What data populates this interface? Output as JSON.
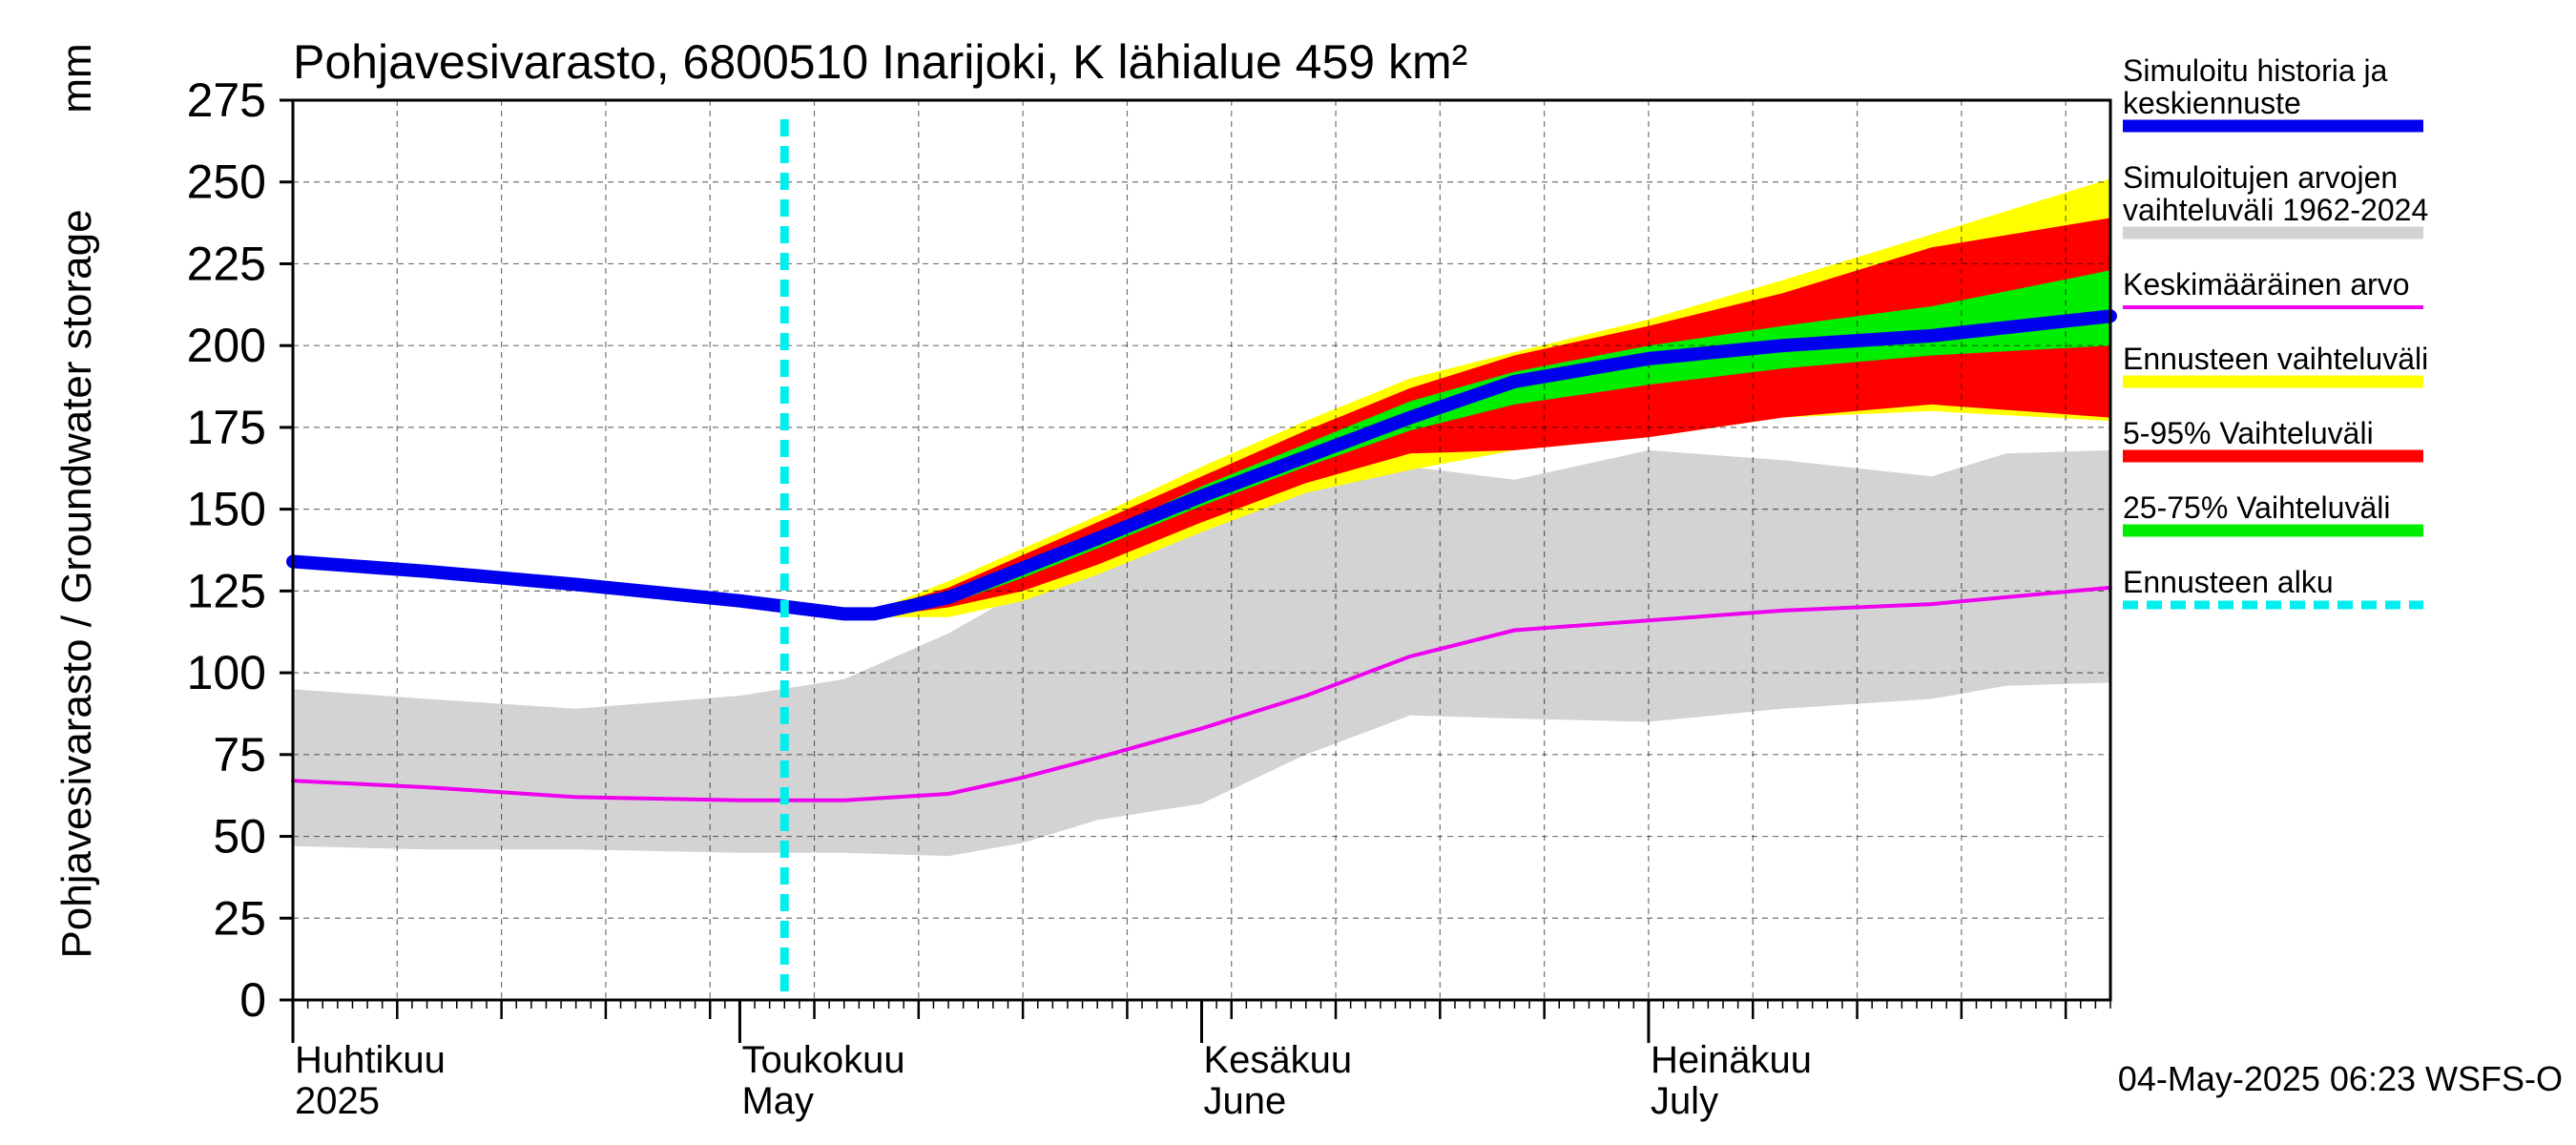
{
  "chart_data": {
    "type": "area",
    "title": "Pohjavesivarasto, 6800510 Inarijoki, K lähialue 459 km²",
    "ylabel": "Pohjavesivarasto / Groundwater storage",
    "yunit": "mm",
    "ylim": [
      0,
      275
    ],
    "yticks": [
      0,
      25,
      50,
      75,
      100,
      125,
      150,
      175,
      200,
      225,
      250,
      275
    ],
    "xlim": [
      "2025-04-01",
      "2025-08-01"
    ],
    "grid": true,
    "legend_position": "right",
    "month_labels": [
      {
        "date": "2025-04-01",
        "fi": "Huhtikuu",
        "en": "2025"
      },
      {
        "date": "2025-05-01",
        "fi": "Toukokuu",
        "en": "May"
      },
      {
        "date": "2025-06-01",
        "fi": "Kesäkuu",
        "en": "June"
      },
      {
        "date": "2025-07-01",
        "fi": "Heinäkuu",
        "en": "July"
      }
    ],
    "forecast_start": "2025-05-04",
    "footer": "04-May-2025 06:23 WSFS-O",
    "colors": {
      "history_range": "#d3d3d3",
      "forecast_range": "#ffff00",
      "p5_95": "#ff0000",
      "p25_75": "#00ee00",
      "mean": "#ee00ee",
      "simulated": "#0000ee",
      "forecast_start": "#00eeee"
    },
    "series": [
      {
        "name": "Simuloitujen arvojen vaihteluväli 1962-2024",
        "key": "history_range",
        "x": [
          "2025-04-01",
          "2025-04-10",
          "2025-04-20",
          "2025-05-01",
          "2025-05-08",
          "2025-05-15",
          "2025-05-20",
          "2025-05-25",
          "2025-06-01",
          "2025-06-08",
          "2025-06-15",
          "2025-06-22",
          "2025-07-01",
          "2025-07-10",
          "2025-07-20",
          "2025-07-25",
          "2025-08-01"
        ],
        "low": [
          47,
          46,
          46,
          45,
          45,
          44,
          48,
          55,
          60,
          75,
          87,
          86,
          85,
          89,
          92,
          96,
          97
        ],
        "high": [
          95,
          92,
          89,
          93,
          98,
          112,
          125,
          140,
          152,
          160,
          163,
          159,
          168,
          165,
          160,
          167,
          168
        ]
      },
      {
        "name": "Ennusteen vaihteluväli",
        "key": "forecast_range",
        "x": [
          "2025-05-10",
          "2025-05-15",
          "2025-05-20",
          "2025-05-25",
          "2025-06-01",
          "2025-06-08",
          "2025-06-15",
          "2025-06-22",
          "2025-07-01",
          "2025-07-10",
          "2025-07-20",
          "2025-08-01"
        ],
        "low": [
          117,
          117,
          122,
          130,
          143,
          155,
          162,
          168,
          172,
          178,
          180,
          177
        ],
        "high": [
          119,
          128,
          138,
          148,
          163,
          177,
          190,
          198,
          208,
          220,
          234,
          251
        ]
      },
      {
        "name": "5-95% Vaihteluväli",
        "key": "p5_95",
        "x": [
          "2025-05-10",
          "2025-05-15",
          "2025-05-20",
          "2025-05-25",
          "2025-06-01",
          "2025-06-08",
          "2025-06-15",
          "2025-06-22",
          "2025-07-01",
          "2025-07-10",
          "2025-07-20",
          "2025-08-01"
        ],
        "low": [
          117,
          120,
          125,
          133,
          146,
          158,
          167,
          168,
          172,
          178,
          182,
          178
        ],
        "high": [
          119,
          126,
          136,
          146,
          160,
          174,
          187,
          197,
          206,
          216,
          230,
          239
        ]
      },
      {
        "name": "25-75% Vaihteluväli",
        "key": "p25_75",
        "x": [
          "2025-05-10",
          "2025-05-15",
          "2025-05-20",
          "2025-05-25",
          "2025-06-01",
          "2025-06-08",
          "2025-06-15",
          "2025-06-22",
          "2025-07-01",
          "2025-07-10",
          "2025-07-20",
          "2025-08-01"
        ],
        "low": [
          117,
          121,
          129,
          138,
          151,
          163,
          174,
          182,
          188,
          193,
          197,
          200
        ],
        "high": [
          119,
          124,
          133,
          142,
          157,
          170,
          183,
          192,
          200,
          206,
          212,
          223
        ]
      },
      {
        "name": "Keskimääräinen arvo",
        "key": "mean",
        "x": [
          "2025-04-01",
          "2025-04-10",
          "2025-04-20",
          "2025-05-01",
          "2025-05-08",
          "2025-05-15",
          "2025-05-20",
          "2025-05-25",
          "2025-06-01",
          "2025-06-08",
          "2025-06-15",
          "2025-06-22",
          "2025-07-01",
          "2025-07-10",
          "2025-07-20",
          "2025-08-01"
        ],
        "y": [
          67,
          65,
          62,
          61,
          61,
          63,
          68,
          74,
          83,
          93,
          105,
          113,
          116,
          119,
          121,
          126
        ]
      },
      {
        "name": "Simuloitu historia ja keskiennuste",
        "key": "simulated",
        "x": [
          "2025-04-01",
          "2025-04-10",
          "2025-04-20",
          "2025-05-01",
          "2025-05-08",
          "2025-05-10",
          "2025-05-15",
          "2025-05-20",
          "2025-05-25",
          "2025-06-01",
          "2025-06-08",
          "2025-06-15",
          "2025-06-22",
          "2025-07-01",
          "2025-07-10",
          "2025-07-20",
          "2025-08-01"
        ],
        "y": [
          134,
          131,
          127,
          122,
          118,
          118,
          123,
          132,
          141,
          154,
          166,
          178,
          189,
          196,
          200,
          203,
          209
        ]
      }
    ],
    "legend": [
      {
        "key": "simulated",
        "label_lines": [
          "Simuloitu historia ja",
          "keskiennuste"
        ],
        "style": "line"
      },
      {
        "key": "history_range",
        "label_lines": [
          "Simuloitujen arvojen",
          "vaihteluväli 1962-2024"
        ],
        "style": "line"
      },
      {
        "key": "mean",
        "label_lines": [
          "Keskimääräinen arvo"
        ],
        "style": "thin"
      },
      {
        "key": "forecast_range",
        "label_lines": [
          "Ennusteen vaihteluväli"
        ],
        "style": "line"
      },
      {
        "key": "p5_95",
        "label_lines": [
          "5-95% Vaihteluväli"
        ],
        "style": "line"
      },
      {
        "key": "p25_75",
        "label_lines": [
          "25-75% Vaihteluväli"
        ],
        "style": "line"
      },
      {
        "key": "forecast_start",
        "label_lines": [
          "Ennusteen alku"
        ],
        "style": "dashed"
      }
    ]
  }
}
